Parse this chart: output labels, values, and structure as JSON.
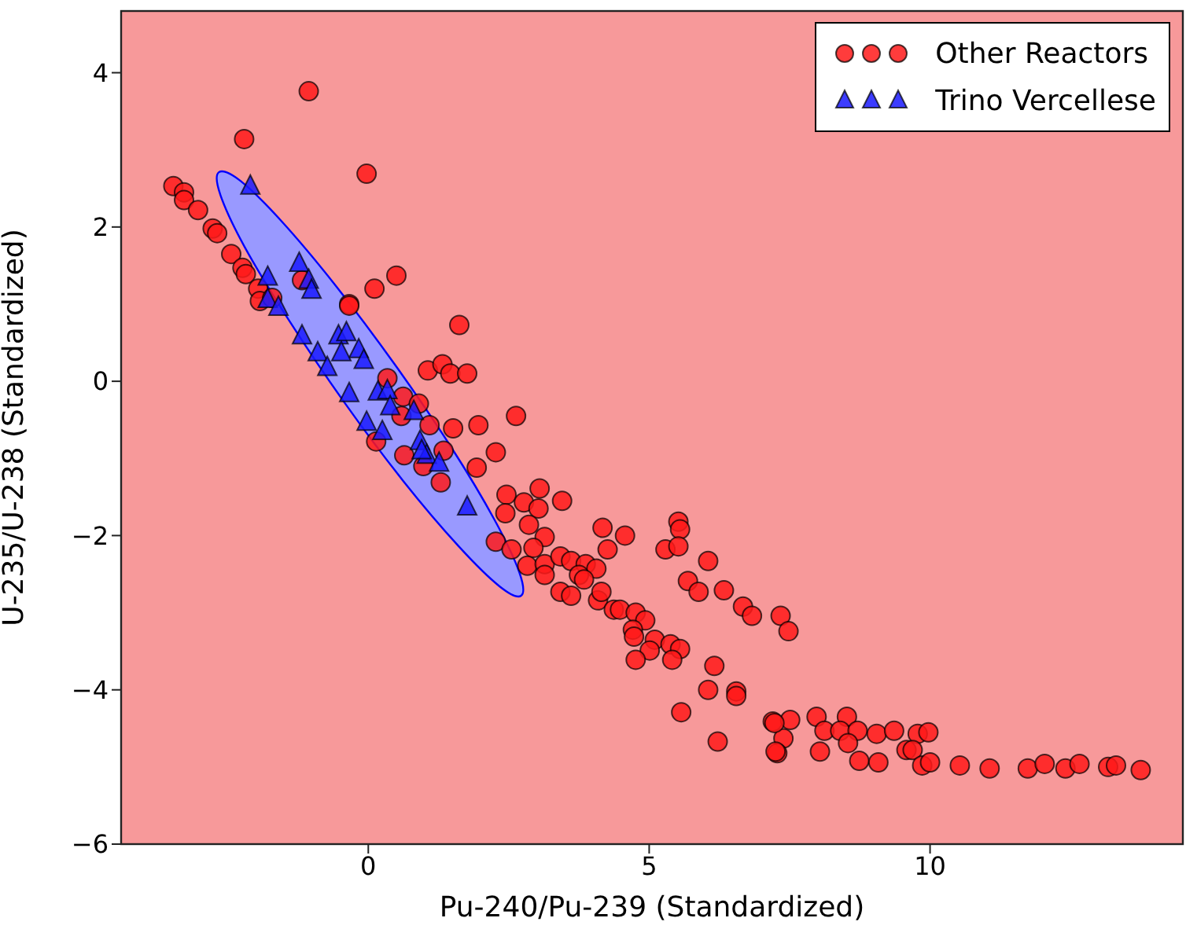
{
  "chart_data": {
    "type": "scatter",
    "xlabel": "Pu-240/Pu-239 (Standardized)",
    "ylabel": "U-235/U-238 (Standardized)",
    "xlim": [
      -4.4,
      14.5
    ],
    "ylim": [
      -6,
      4.8
    ],
    "xticks": [
      0,
      5,
      10
    ],
    "yticks": [
      -6,
      -4,
      -2,
      0,
      2,
      4
    ],
    "legend": "top right",
    "bands": [
      {
        "axis": "x",
        "from": -4.4,
        "to": 14.5,
        "color": "#f7999a"
      }
    ],
    "series": [
      {
        "type": "area",
        "color": "#9999ff",
        "x": [
          2.72,
          2.34,
          1.61,
          0.63,
          -0.43,
          -1.42,
          -2.2,
          -2.63,
          -2.66,
          -2.28,
          -1.55,
          -0.58,
          0.48,
          1.48,
          2.25,
          2.69
        ],
        "values": [
          -2.78,
          -2.66,
          -2.14,
          -1.3,
          -0.27,
          0.8,
          1.74,
          2.41,
          2.71,
          2.6,
          2.08,
          1.24,
          0.21,
          -0.86,
          -1.8,
          -2.48
        ]
      },
      {
        "name": "Other Reactors",
        "color": "#ff1a1a",
        "marker": "circle",
        "x": [
          -1.06,
          -2.21,
          -0.03,
          -3.47,
          -3.28,
          -3.28,
          -3.03,
          -2.77,
          -2.69,
          -2.44,
          -2.24,
          -2.18,
          -1.96,
          -1.93,
          -1.71,
          -1.18,
          -0.34,
          -0.34,
          0.11,
          0.5,
          1.62,
          1.06,
          1.32,
          1.46,
          1.76,
          0.34,
          0.62,
          0.9,
          0.59,
          1.09,
          1.51,
          1.96,
          2.63,
          2.27,
          1.93,
          1.34,
          0.64,
          0.14,
          0.98,
          1.29,
          2.46,
          3.05,
          3.45,
          2.77,
          3.03,
          2.44,
          2.86,
          3.14,
          2.27,
          2.55,
          2.94,
          2.83,
          3.14,
          3.14,
          3.42,
          3.61,
          3.87,
          4.06,
          3.75,
          3.84,
          3.42,
          3.61,
          4.09,
          4.15,
          4.17,
          4.57,
          4.26,
          5.52,
          5.55,
          5.29,
          5.52,
          6.05,
          5.69,
          5.88,
          6.33,
          6.67,
          6.83,
          7.34,
          7.48,
          4.37,
          4.48,
          4.76,
          4.93,
          4.71,
          4.73,
          5.1,
          5.38,
          5.55,
          5.01,
          5.41,
          4.76,
          6.16,
          6.05,
          6.55,
          6.55,
          5.57,
          6.22,
          7.2,
          7.51,
          7.39,
          7.28,
          7.23,
          7.98,
          8.12,
          8.52,
          8.4,
          8.71,
          9.05,
          9.36,
          9.78,
          9.97,
          7.25,
          8.04,
          8.54,
          9.58,
          9.69,
          8.74,
          9.08,
          9.86,
          10.0,
          10.53,
          11.06,
          11.74,
          12.04,
          12.41,
          12.66,
          13.17,
          13.31,
          13.75
        ],
        "values": [
          3.76,
          3.14,
          2.69,
          2.53,
          2.45,
          2.35,
          2.22,
          1.98,
          1.92,
          1.65,
          1.47,
          1.39,
          1.2,
          1.04,
          1.08,
          1.31,
          1.0,
          0.98,
          1.2,
          1.37,
          0.73,
          0.14,
          0.22,
          0.1,
          0.1,
          0.04,
          -0.2,
          -0.29,
          -0.45,
          -0.57,
          -0.61,
          -0.57,
          -0.45,
          -0.92,
          -1.12,
          -0.9,
          -0.96,
          -0.78,
          -1.1,
          -1.31,
          -1.47,
          -1.39,
          -1.55,
          -1.57,
          -1.65,
          -1.71,
          -1.86,
          -2.02,
          -2.08,
          -2.18,
          -2.16,
          -2.39,
          -2.37,
          -2.51,
          -2.27,
          -2.33,
          -2.37,
          -2.43,
          -2.51,
          -2.57,
          -2.73,
          -2.78,
          -2.84,
          -2.73,
          -1.9,
          -2.0,
          -2.18,
          -1.82,
          -1.92,
          -2.18,
          -2.14,
          -2.33,
          -2.59,
          -2.73,
          -2.71,
          -2.92,
          -3.04,
          -3.04,
          -3.24,
          -2.96,
          -2.96,
          -3.0,
          -3.1,
          -3.22,
          -3.31,
          -3.35,
          -3.41,
          -3.47,
          -3.49,
          -3.61,
          -3.61,
          -3.69,
          -4.0,
          -4.02,
          -4.08,
          -4.29,
          -4.67,
          -4.41,
          -4.39,
          -4.63,
          -4.82,
          -4.43,
          -4.35,
          -4.53,
          -4.35,
          -4.53,
          -4.53,
          -4.57,
          -4.53,
          -4.57,
          -4.55,
          -4.8,
          -4.8,
          -4.69,
          -4.78,
          -4.78,
          -4.92,
          -4.94,
          -4.98,
          -4.94,
          -4.98,
          -5.02,
          -5.02,
          -4.96,
          -5.02,
          -4.96,
          -5.0,
          -4.98,
          -5.04
        ]
      },
      {
        "name": "Trino Vercellese",
        "color": "#1a1aff",
        "marker": "triangle",
        "x": [
          -2.1,
          -1.23,
          -1.79,
          -1.06,
          -1.01,
          -1.79,
          -1.6,
          -1.18,
          -0.53,
          -0.39,
          -0.17,
          -0.48,
          -0.9,
          -0.73,
          -0.08,
          -0.34,
          0.17,
          0.34,
          0.39,
          -0.03,
          0.25,
          0.92,
          1.04,
          0.95,
          1.26,
          1.76,
          0.81
        ],
        "values": [
          2.53,
          1.53,
          1.35,
          1.31,
          1.18,
          1.06,
          0.96,
          0.59,
          0.59,
          0.63,
          0.41,
          0.37,
          0.37,
          0.18,
          0.27,
          -0.16,
          -0.14,
          -0.12,
          -0.33,
          -0.53,
          -0.65,
          -0.78,
          -0.96,
          -0.9,
          -1.06,
          -1.63,
          -0.39
        ]
      }
    ]
  }
}
